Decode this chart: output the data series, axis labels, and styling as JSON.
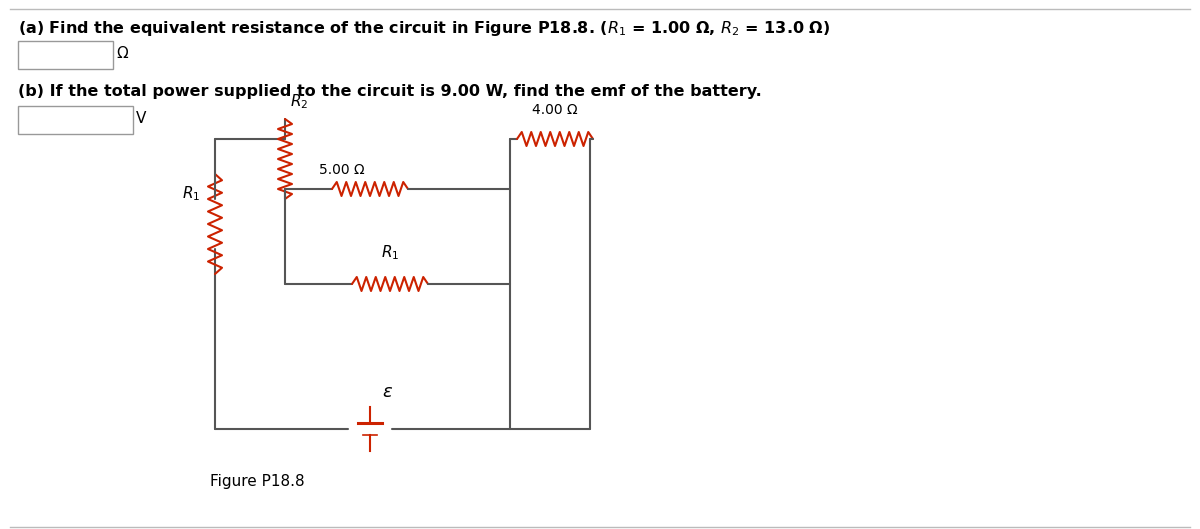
{
  "title_a": "(a) Find the equivalent resistance of the circuit in Figure P18.8. ($R_1$ = 1.00 Ω, $R_2$ = 13.0 Ω)",
  "title_b": "(b) If the total power supplied to the circuit is 9.00 W, find the emf of the battery.",
  "box_a_label": "Ω",
  "box_b_label": "V",
  "fig_caption": "Figure P18.8",
  "resistor_color": "#cc2200",
  "wire_color": "#555555",
  "background_color": "#ffffff",
  "text_color": "#000000",
  "label_R2": "$R_2$",
  "label_R1_outer": "$R_1$",
  "label_5ohm": "5.00 Ω",
  "label_4ohm": "4.00 Ω",
  "label_R1_mid": "$R_1$",
  "label_epsilon": "$\\varepsilon$",
  "fig_caption2": "Figure P18.8",
  "figsize": [
    12.0,
    5.29
  ],
  "dpi": 100
}
